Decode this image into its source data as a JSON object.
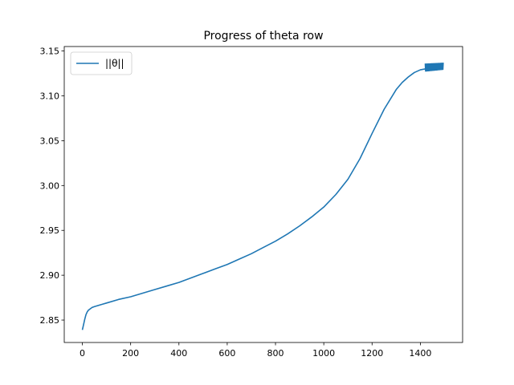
{
  "chart_data": {
    "type": "line",
    "title": "Progress of theta row",
    "xlabel": "",
    "ylabel": "",
    "xlim": [
      -75,
      1575
    ],
    "ylim": [
      2.825,
      3.155
    ],
    "xticks": [
      0,
      200,
      400,
      600,
      800,
      1000,
      1200,
      1400
    ],
    "yticks": [
      2.85,
      2.9,
      2.95,
      3.0,
      3.05,
      3.1,
      3.15
    ],
    "xtick_labels": [
      "0",
      "200",
      "400",
      "600",
      "800",
      "1000",
      "1200",
      "1400"
    ],
    "ytick_labels": [
      "2.85",
      "2.90",
      "2.95",
      "3.00",
      "3.05",
      "3.10",
      "3.15"
    ],
    "grid": false,
    "legend": {
      "position": "upper-left"
    },
    "colors": {
      "series": "#1f77b4"
    },
    "series": [
      {
        "name": "||θ||",
        "x": [
          0,
          5,
          10,
          15,
          20,
          25,
          30,
          40,
          50,
          75,
          100,
          150,
          200,
          250,
          300,
          350,
          400,
          450,
          500,
          550,
          600,
          650,
          700,
          750,
          800,
          850,
          900,
          950,
          1000,
          1050,
          1100,
          1150,
          1200,
          1250,
          1300,
          1325,
          1350,
          1375,
          1400,
          1420
        ],
        "y": [
          2.839,
          2.845,
          2.851,
          2.856,
          2.859,
          2.861,
          2.862,
          2.864,
          2.865,
          2.867,
          2.869,
          2.873,
          2.876,
          2.88,
          2.884,
          2.888,
          2.892,
          2.897,
          2.902,
          2.907,
          2.912,
          2.918,
          2.924,
          2.931,
          2.938,
          2.946,
          2.955,
          2.965,
          2.976,
          2.99,
          3.007,
          3.03,
          3.058,
          3.085,
          3.107,
          3.115,
          3.121,
          3.126,
          3.129,
          3.13
        ]
      }
    ],
    "oscillation": {
      "x_start": 1420,
      "x_end": 1495,
      "y_low": 3.127,
      "y_high": 3.136
    }
  }
}
